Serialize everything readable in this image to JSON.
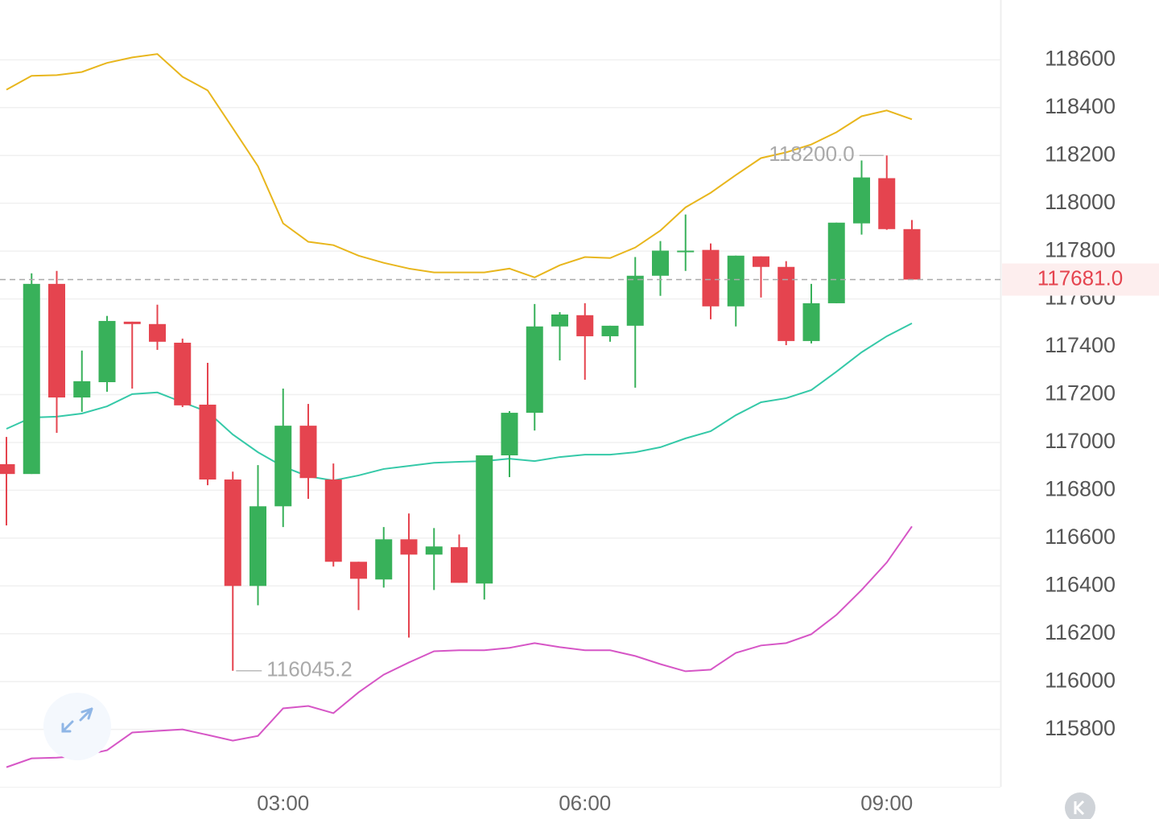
{
  "chart_data": {
    "type": "candlestick",
    "categories": [
      null,
      null,
      null,
      null,
      null,
      null,
      null,
      null,
      null,
      null,
      null,
      "03:00",
      null,
      null,
      null,
      null,
      null,
      null,
      null,
      null,
      null,
      null,
      null,
      "06:00",
      null,
      null,
      null,
      null,
      null,
      null,
      null,
      null,
      null,
      null,
      null,
      "09:00",
      null
    ],
    "open": [
      116909,
      116868,
      117663,
      117188,
      117252,
      117505,
      117495,
      117417,
      117158,
      116845,
      116400,
      116733,
      117070,
      116845,
      116501,
      116427,
      116595,
      116531,
      116562,
      116410,
      116946,
      117124,
      117485,
      117532,
      117444,
      117488,
      117697,
      117799,
      117805,
      117569,
      117778,
      117734,
      117424,
      117582,
      117916,
      118105,
      117892
    ],
    "high": [
      117023,
      117707,
      117717,
      117384,
      117529,
      117505,
      117576,
      117434,
      117333,
      116878,
      116905,
      117225,
      117161,
      116912,
      116501,
      116646,
      116703,
      116642,
      116615,
      116946,
      117131,
      117579,
      117545,
      117582,
      117488,
      117775,
      117842,
      117953,
      117832,
      117781,
      117778,
      117758,
      117663,
      117919,
      118179,
      118200.0,
      117930
    ],
    "low": [
      116653,
      116868,
      117040,
      117128,
      117212,
      117225,
      117387,
      117148,
      116821,
      116045.2,
      116319,
      116646,
      116764,
      116481,
      116299,
      116393,
      116184,
      116383,
      116413,
      116343,
      116855,
      117050,
      117343,
      117262,
      117421,
      117229,
      117613,
      117717,
      117515,
      117485,
      117606,
      117407,
      117414,
      117582,
      117869,
      117889,
      117681.0
    ],
    "close": [
      116868,
      117663,
      117188,
      117256,
      117508,
      117495,
      117421,
      117155,
      116845,
      116400,
      116733,
      117070,
      116851,
      116501,
      116430,
      116595,
      116531,
      116565,
      116413,
      116946,
      117124,
      117485,
      117535,
      117444,
      117488,
      117697,
      117802,
      117802,
      117569,
      117781,
      117734,
      117424,
      117582,
      117919,
      118108,
      117892,
      117681.0
    ],
    "up_color": "#38b15a",
    "down_color": "#e5444f",
    "lines": [
      {
        "color": "#e8b61d",
        "values": [
          118475,
          118533,
          118536,
          118549,
          118587,
          118610,
          118624,
          118529,
          118472,
          118314,
          118155,
          117916,
          117839,
          117825,
          117781,
          117751,
          117727,
          117711,
          117711,
          117711,
          117727,
          117690,
          117741,
          117775,
          117771,
          117815,
          117886,
          117983,
          118044,
          118118,
          118189,
          118213,
          118246,
          118297,
          118364,
          118388,
          118351
        ]
      },
      {
        "color": "#35c9a8",
        "values": [
          117057,
          117104,
          117108,
          117121,
          117151,
          117202,
          117209,
          117168,
          117128,
          117033,
          116959,
          116899,
          116858,
          116841,
          116862,
          116889,
          116902,
          116915,
          116919,
          116922,
          116932,
          116922,
          116939,
          116949,
          116949,
          116959,
          116980,
          117017,
          117047,
          117114,
          117168,
          117185,
          117219,
          117296,
          117377,
          117444,
          117498
        ]
      },
      {
        "color": "#d656c6",
        "values": [
          115642,
          115679,
          115682,
          115689,
          115713,
          115787,
          115794,
          115800,
          115777,
          115753,
          115773,
          115888,
          115898,
          115868,
          115955,
          116029,
          116080,
          116127,
          116131,
          116131,
          116141,
          116161,
          116144,
          116131,
          116131,
          116107,
          116073,
          116043,
          116050,
          116120,
          116151,
          116161,
          116198,
          116279,
          116383,
          116498,
          116649
        ]
      }
    ],
    "annotations": {
      "high": "118200.0",
      "low": "116045.2",
      "last": "117681.0"
    },
    "ylim": [
      115560,
      118850
    ],
    "yticks": [
      115800,
      116000,
      116200,
      116400,
      116600,
      116800,
      117000,
      117200,
      117400,
      117600,
      117800,
      118000,
      118200,
      118400,
      118600
    ],
    "grid": true
  }
}
